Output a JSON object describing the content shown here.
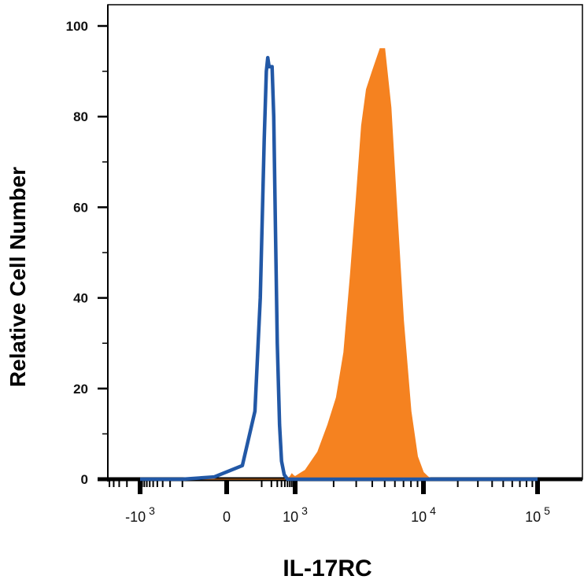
{
  "chart_data": {
    "type": "area",
    "xlabel": "IL-17RC",
    "ylabel": "Relative Cell Number",
    "x_scale": "biexponential",
    "ylim": [
      0,
      100
    ],
    "yticks": [
      0,
      20,
      40,
      60,
      80,
      100
    ],
    "xticks": [
      {
        "base": "-10",
        "exp": "3",
        "value": -1000
      },
      {
        "base": "0",
        "exp": "",
        "value": 0
      },
      {
        "base": "10",
        "exp": "3",
        "value": 1000
      },
      {
        "base": "10",
        "exp": "4",
        "value": 10000
      },
      {
        "base": "10",
        "exp": "5",
        "value": 100000
      }
    ],
    "grid": false,
    "series": [
      {
        "style": "outline",
        "color": "#2258a6",
        "points": [
          [
            -1000,
            0
          ],
          [
            -100,
            0
          ],
          [
            -10,
            0.5
          ],
          [
            20,
            3
          ],
          [
            60,
            15
          ],
          [
            90,
            40
          ],
          [
            120,
            75
          ],
          [
            140,
            90
          ],
          [
            155,
            93
          ],
          [
            170,
            91
          ],
          [
            210,
            91
          ],
          [
            235,
            80
          ],
          [
            265,
            55
          ],
          [
            300,
            30
          ],
          [
            350,
            12
          ],
          [
            400,
            4
          ],
          [
            480,
            1
          ],
          [
            600,
            0
          ],
          [
            100000,
            0
          ]
        ]
      },
      {
        "style": "filled",
        "color": "#f58220",
        "points": [
          [
            -1000,
            0
          ],
          [
            500,
            0
          ],
          [
            700,
            0.5
          ],
          [
            800,
            1.2
          ],
          [
            900,
            0.8
          ],
          [
            1000,
            0.6
          ],
          [
            1200,
            2
          ],
          [
            1500,
            6
          ],
          [
            1800,
            12
          ],
          [
            2100,
            18
          ],
          [
            2400,
            28
          ],
          [
            2700,
            45
          ],
          [
            3000,
            62
          ],
          [
            3300,
            78
          ],
          [
            3600,
            86
          ],
          [
            4000,
            90
          ],
          [
            4600,
            95
          ],
          [
            5000,
            95
          ],
          [
            5600,
            82
          ],
          [
            6200,
            60
          ],
          [
            7000,
            35
          ],
          [
            8000,
            15
          ],
          [
            9000,
            5
          ],
          [
            10000,
            1.5
          ],
          [
            11000,
            0.5
          ],
          [
            12000,
            0
          ],
          [
            100000,
            0
          ]
        ]
      }
    ]
  }
}
